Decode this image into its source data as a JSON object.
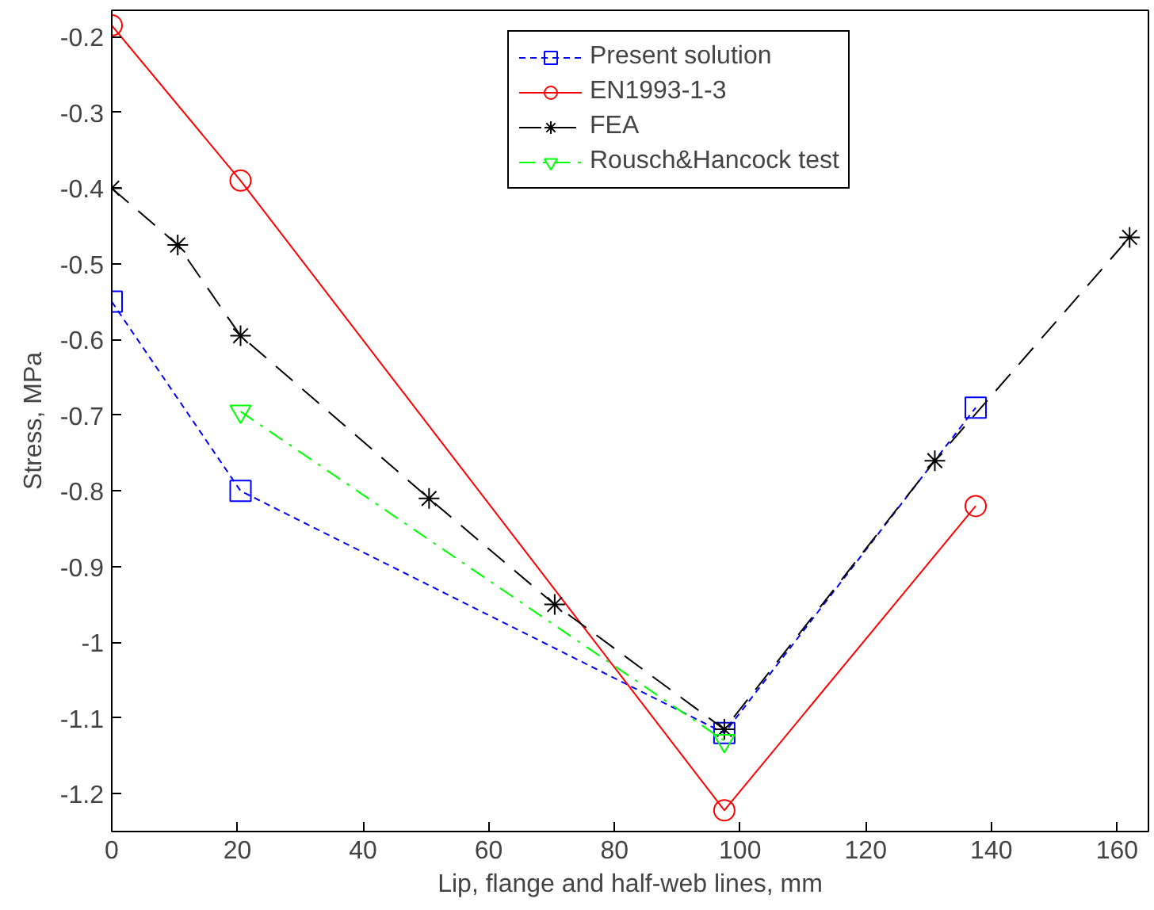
{
  "chart_data": {
    "type": "line",
    "xlabel": "Lip, flange and half-web lines, mm",
    "ylabel": "Stress, MPa",
    "xlim": [
      0,
      165
    ],
    "ylim": [
      -1.25,
      -0.165
    ],
    "xticks": [
      0,
      20,
      40,
      60,
      80,
      100,
      120,
      140,
      160
    ],
    "yticks": [
      -1.2,
      -1.1,
      -1,
      -0.9,
      -0.8,
      -0.7,
      -0.6,
      -0.5,
      -0.4,
      -0.3,
      -0.2
    ],
    "grid": false,
    "legend": "top right",
    "series": [
      {
        "name": "Present solution",
        "color": "#0000ff",
        "marker": "square",
        "line_style": "dashed",
        "x": [
          0,
          20.5,
          97.5,
          137.5
        ],
        "values": [
          -0.55,
          -0.8,
          -1.12,
          -0.69
        ]
      },
      {
        "name": "EN1993-1-3",
        "color": "#ff0000",
        "marker": "circle",
        "line_style": "solid",
        "x": [
          0,
          20.5,
          97.5,
          137.5
        ],
        "values": [
          -0.185,
          -0.39,
          -1.222,
          -0.82
        ]
      },
      {
        "name": "FEA",
        "color": "#000000",
        "marker": "cross",
        "line_style": "longdash",
        "x": [
          0,
          10.5,
          20.5,
          50.5,
          70.5,
          97.5,
          131,
          162
        ],
        "values": [
          -0.4,
          -0.475,
          -0.595,
          -0.81,
          -0.95,
          -1.115,
          -0.76,
          -0.465
        ]
      },
      {
        "name": "Rousch&Hancock test",
        "color": "#00ff00",
        "marker": "triangle",
        "line_style": "dashdot",
        "x": [
          20.5,
          97.5
        ],
        "values": [
          -0.695,
          -1.13
        ]
      }
    ]
  }
}
